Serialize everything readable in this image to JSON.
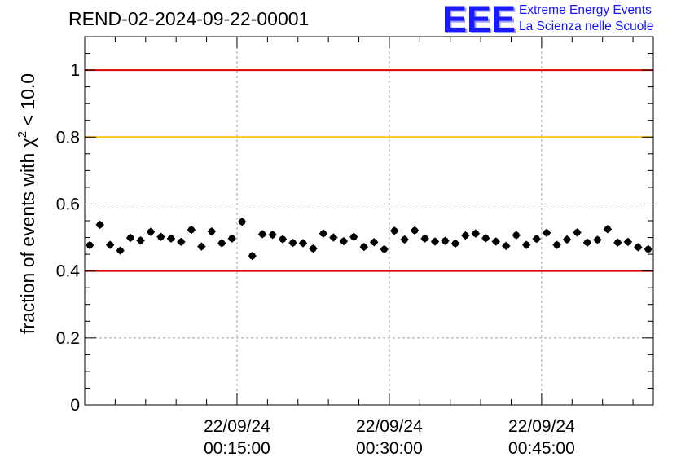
{
  "header": {
    "title": "REND-02-2024-09-22-00001",
    "logo_mark": "EEE",
    "logo_line1": "Extreme Energy Events",
    "logo_line2": "La Scienza nelle Scuole"
  },
  "colors": {
    "upper_limit": "#e00000",
    "warning_limit": "#ffc000",
    "lower_limit": "#e00000",
    "points": "#000000",
    "grid": "#a0a0a0",
    "logo": "#1414ff"
  },
  "chart_data": {
    "type": "scatter",
    "title": "REND-02-2024-09-22-00001",
    "ylabel_prefix": "fraction of events with χ",
    "ylabel_sup": "2",
    "ylabel_suffix": " < 10.0",
    "xlabel": "",
    "ylim": [
      0,
      1.1
    ],
    "xlim_minutes": [
      0,
      56
    ],
    "x_unit": "minutes after 22/09/24 00:00:00",
    "y_ticks": [
      0,
      0.2,
      0.4,
      0.6,
      0.8,
      1
    ],
    "y_tick_labels": [
      "0",
      "0.2",
      "0.4",
      "0.6",
      "0.8",
      "1"
    ],
    "x_ticks_minutes": [
      15,
      30,
      45
    ],
    "x_tick_labels": [
      {
        "date": "22/09/24",
        "time": "00:15:00"
      },
      {
        "date": "22/09/24",
        "time": "00:30:00"
      },
      {
        "date": "22/09/24",
        "time": "00:45:00"
      }
    ],
    "grid": true,
    "reference_lines": [
      {
        "y": 1.0,
        "color": "#e00000"
      },
      {
        "y": 0.8,
        "color": "#ffc000"
      },
      {
        "y": 0.4,
        "color": "#e00000"
      }
    ],
    "x_halfwidth_minutes": 0.4,
    "y_error": 0.012,
    "x": [
      0.5,
      1.5,
      2.5,
      3.5,
      4.5,
      5.5,
      6.5,
      7.5,
      8.5,
      9.5,
      10.5,
      11.5,
      12.5,
      13.5,
      14.5,
      15.5,
      16.5,
      17.5,
      18.5,
      19.5,
      20.5,
      21.5,
      22.5,
      23.5,
      24.5,
      25.5,
      26.5,
      27.5,
      28.5,
      29.5,
      30.5,
      31.5,
      32.5,
      33.5,
      34.5,
      35.5,
      36.5,
      37.5,
      38.5,
      39.5,
      40.5,
      41.5,
      42.5,
      43.5,
      44.5,
      45.5,
      46.5,
      47.5,
      48.5,
      49.5,
      50.5,
      51.5,
      52.5,
      53.5,
      54.5,
      55.5
    ],
    "y": [
      0.477,
      0.538,
      0.478,
      0.461,
      0.499,
      0.491,
      0.517,
      0.502,
      0.497,
      0.487,
      0.523,
      0.473,
      0.518,
      0.483,
      0.497,
      0.547,
      0.445,
      0.51,
      0.508,
      0.495,
      0.484,
      0.483,
      0.467,
      0.512,
      0.5,
      0.489,
      0.502,
      0.472,
      0.486,
      0.465,
      0.52,
      0.494,
      0.521,
      0.497,
      0.488,
      0.49,
      0.482,
      0.506,
      0.512,
      0.498,
      0.488,
      0.475,
      0.507,
      0.478,
      0.496,
      0.514,
      0.478,
      0.494,
      0.515,
      0.485,
      0.493,
      0.525,
      0.485,
      0.487,
      0.471,
      0.465
    ]
  }
}
